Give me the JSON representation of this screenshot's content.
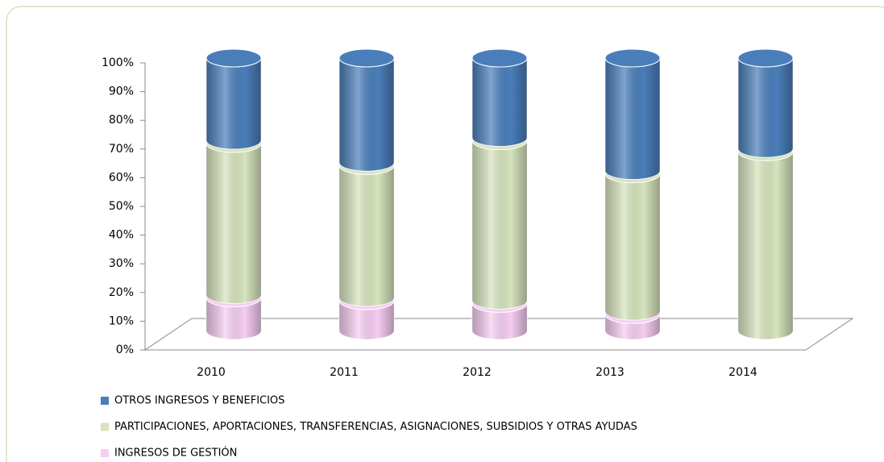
{
  "chart_data": {
    "type": "stacked-cylinder",
    "categories": [
      "2010",
      "2011",
      "2012",
      "2013",
      "2014"
    ],
    "series": [
      {
        "name": "OTROS INGRESOS Y BENEFICIOS",
        "color": "#4a7ebb",
        "values": [
          31,
          39,
          30,
          42,
          34
        ]
      },
      {
        "name": "PARTICIPACIONES, APORTACIONES, TRANSFERENCIAS, ASIGNACIONES, SUBSIDIOS Y OTRAS AYUDAS",
        "color": "#d7e4bd",
        "values": [
          56,
          49,
          59,
          51,
          66
        ]
      },
      {
        "name": "INGRESOS DE GESTIÓN",
        "color": "#f7cdf3",
        "values": [
          13,
          12,
          11,
          7,
          0
        ]
      }
    ],
    "ylim": [
      0,
      100
    ],
    "yticks": [
      {
        "value": 0,
        "label": "0%"
      },
      {
        "value": 10,
        "label": "10%"
      },
      {
        "value": 20,
        "label": "20%"
      },
      {
        "value": 30,
        "label": "30%"
      },
      {
        "value": 40,
        "label": "40%"
      },
      {
        "value": 50,
        "label": "50%"
      },
      {
        "value": 60,
        "label": "60%"
      },
      {
        "value": 70,
        "label": "70%"
      },
      {
        "value": 80,
        "label": "80%"
      },
      {
        "value": 90,
        "label": "90%"
      },
      {
        "value": 100,
        "label": "100%"
      }
    ],
    "legend": "bottom-left"
  }
}
